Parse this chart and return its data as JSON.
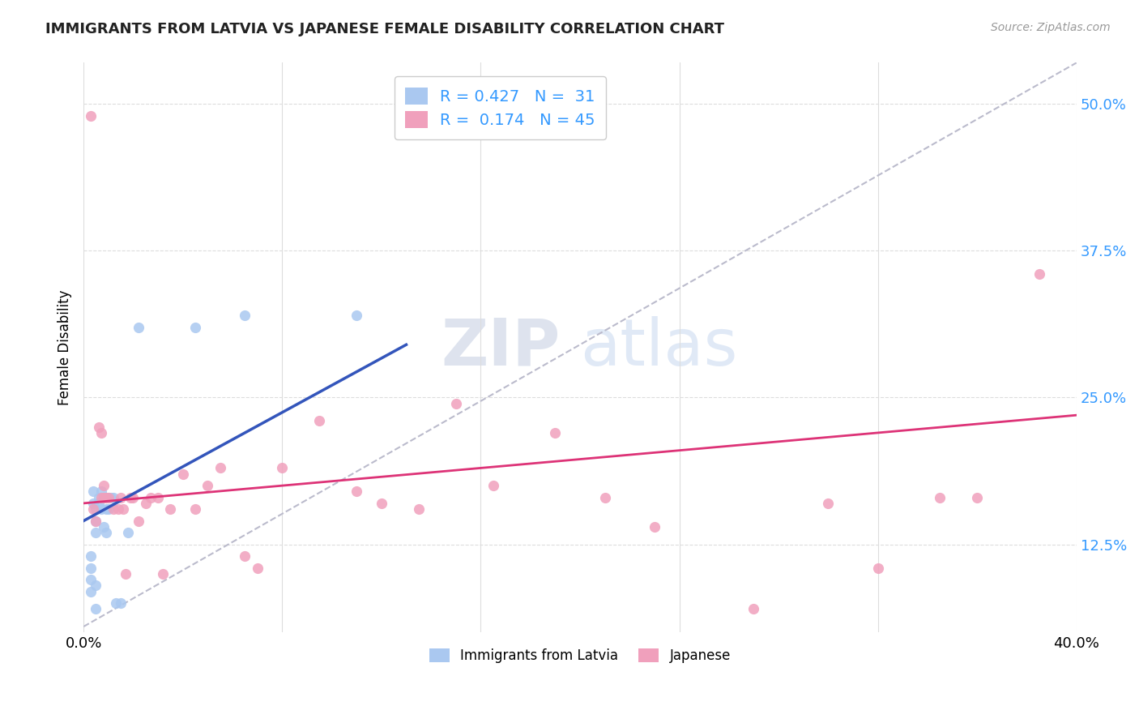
{
  "title": "IMMIGRANTS FROM LATVIA VS JAPANESE FEMALE DISABILITY CORRELATION CHART",
  "source": "Source: ZipAtlas.com",
  "ylabel": "Female Disability",
  "xlim": [
    0.0,
    0.4
  ],
  "ylim": [
    0.05,
    0.535
  ],
  "ytick_positions": [
    0.125,
    0.25,
    0.375,
    0.5
  ],
  "ytick_labels": [
    "12.5%",
    "25.0%",
    "37.5%",
    "50.0%"
  ],
  "xtick_positions": [
    0.0,
    0.08,
    0.16,
    0.24,
    0.32,
    0.4
  ],
  "xtick_labels": [
    "0.0%",
    "",
    "",
    "",
    "",
    "40.0%"
  ],
  "legend_line1": "R = 0.427   N =  31",
  "legend_line2": "R =  0.174   N = 45",
  "legend_r1": "0.427",
  "legend_n1": "31",
  "legend_r2": "0.174",
  "legend_n2": "45",
  "blue_color": "#aac8f0",
  "pink_color": "#f0a0bc",
  "blue_line_color": "#3355bb",
  "pink_line_color": "#dd3377",
  "dashed_line_color": "#bbbbcc",
  "watermark_zip": "ZIP",
  "watermark_atlas": "atlas",
  "blue_scatter_x": [
    0.003,
    0.003,
    0.003,
    0.003,
    0.004,
    0.004,
    0.005,
    0.005,
    0.005,
    0.005,
    0.005,
    0.006,
    0.006,
    0.007,
    0.007,
    0.008,
    0.008,
    0.009,
    0.009,
    0.009,
    0.01,
    0.01,
    0.011,
    0.012,
    0.013,
    0.015,
    0.018,
    0.022,
    0.045,
    0.065,
    0.11
  ],
  "blue_scatter_y": [
    0.115,
    0.105,
    0.095,
    0.085,
    0.17,
    0.16,
    0.155,
    0.145,
    0.135,
    0.09,
    0.07,
    0.165,
    0.16,
    0.17,
    0.155,
    0.165,
    0.14,
    0.165,
    0.155,
    0.135,
    0.165,
    0.155,
    0.165,
    0.165,
    0.075,
    0.075,
    0.135,
    0.31,
    0.31,
    0.32,
    0.32
  ],
  "pink_scatter_x": [
    0.003,
    0.004,
    0.005,
    0.006,
    0.007,
    0.007,
    0.008,
    0.008,
    0.009,
    0.01,
    0.012,
    0.014,
    0.015,
    0.016,
    0.017,
    0.019,
    0.02,
    0.022,
    0.025,
    0.027,
    0.03,
    0.032,
    0.035,
    0.04,
    0.045,
    0.05,
    0.055,
    0.065,
    0.07,
    0.08,
    0.095,
    0.11,
    0.12,
    0.135,
    0.15,
    0.165,
    0.19,
    0.21,
    0.23,
    0.27,
    0.3,
    0.32,
    0.345,
    0.36,
    0.385
  ],
  "pink_scatter_y": [
    0.49,
    0.155,
    0.145,
    0.225,
    0.22,
    0.165,
    0.175,
    0.165,
    0.165,
    0.165,
    0.155,
    0.155,
    0.165,
    0.155,
    0.1,
    0.165,
    0.165,
    0.145,
    0.16,
    0.165,
    0.165,
    0.1,
    0.155,
    0.185,
    0.155,
    0.175,
    0.19,
    0.115,
    0.105,
    0.19,
    0.23,
    0.17,
    0.16,
    0.155,
    0.245,
    0.175,
    0.22,
    0.165,
    0.14,
    0.07,
    0.16,
    0.105,
    0.165,
    0.165,
    0.355
  ],
  "blue_line_x": [
    0.0,
    0.13
  ],
  "blue_line_y": [
    0.145,
    0.295
  ],
  "pink_line_x": [
    0.0,
    0.4
  ],
  "pink_line_y": [
    0.16,
    0.235
  ],
  "dashed_line_x": [
    0.0,
    0.4
  ],
  "dashed_line_y": [
    0.055,
    0.535
  ]
}
